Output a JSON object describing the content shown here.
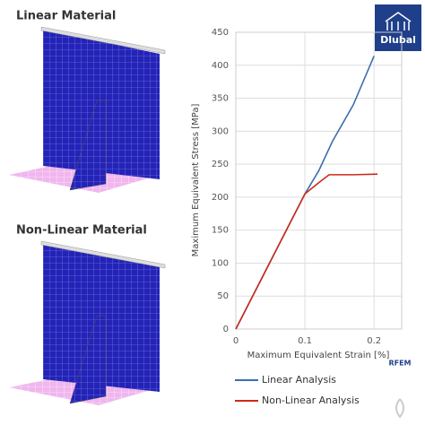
{
  "labels": {
    "top_panel": "Linear Material",
    "bottom_panel": "Non-Linear Material",
    "logo": "Dlubal",
    "brand": "RFEM"
  },
  "chart_data": {
    "type": "line",
    "x_label": "Maximum Equivalent Strain [%]",
    "y_label": "Maximum Equivalent Stress [MPa]",
    "xlim": [
      0,
      0.24
    ],
    "xticks": [
      0,
      0.1,
      0.2
    ],
    "ylim": [
      0,
      450
    ],
    "yticks": [
      0,
      50,
      100,
      150,
      200,
      250,
      300,
      350,
      400,
      450
    ],
    "grid": true,
    "series": [
      {
        "name": "Linear Analysis",
        "color": "#3a6fb0",
        "x": [
          0,
          0.1,
          0.12,
          0.14,
          0.17,
          0.2
        ],
        "values": [
          0,
          205,
          240,
          285,
          340,
          414
        ]
      },
      {
        "name": "Non-Linear Analysis",
        "color": "#cc2a1a",
        "x": [
          0,
          0.1,
          0.12,
          0.135,
          0.17,
          0.205
        ],
        "values": [
          0,
          205,
          222,
          234,
          234,
          235
        ]
      }
    ]
  }
}
